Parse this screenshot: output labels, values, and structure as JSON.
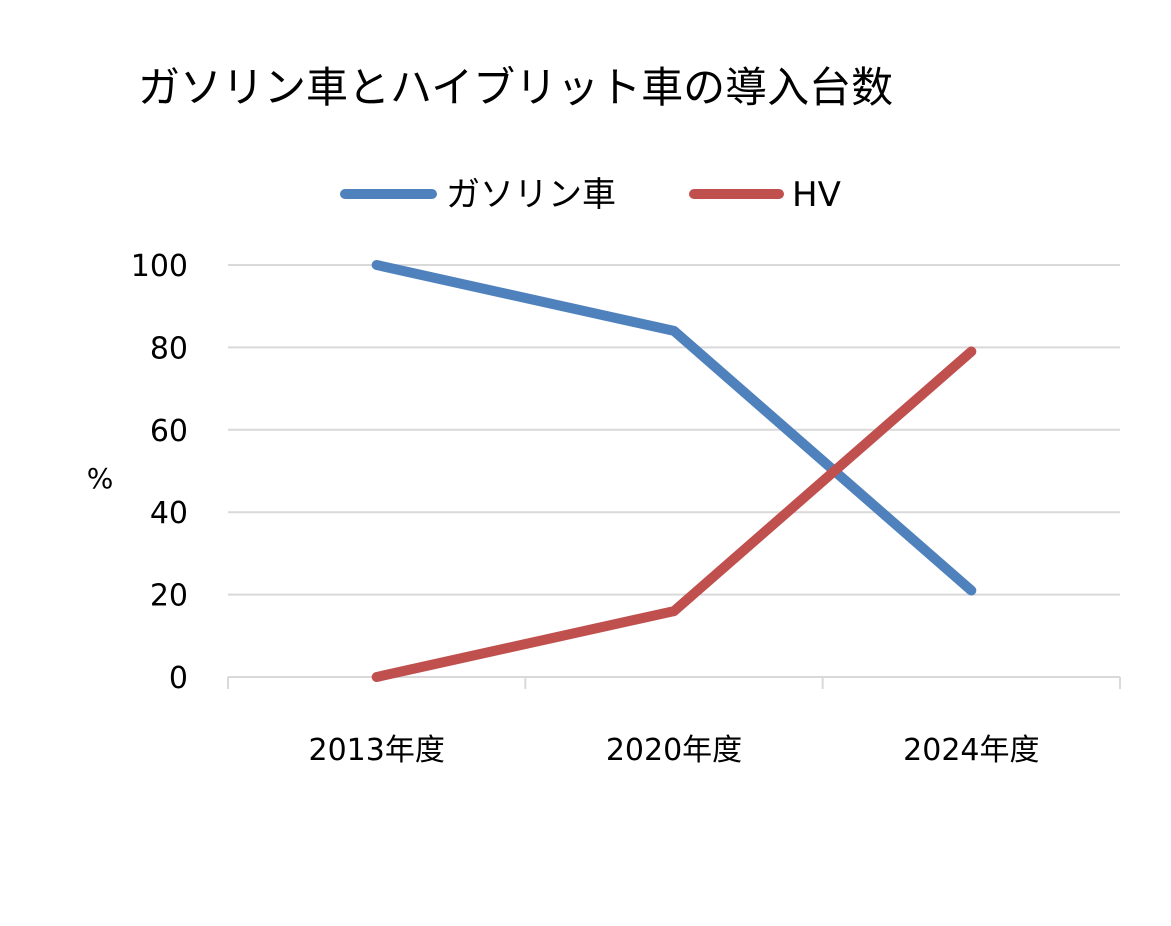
{
  "chart_data": {
    "type": "line",
    "title": "ガソリン車とハイブリット車の導入台数",
    "ylabel": "%",
    "xlabel": "",
    "categories": [
      "2013年度",
      "2020年度",
      "2024年度"
    ],
    "ylim": [
      0,
      100
    ],
    "yticks": [
      0,
      20,
      40,
      60,
      80,
      100
    ],
    "grid": true,
    "legend": "top-center",
    "series": [
      {
        "name": "ガソリン車",
        "color": "#4F81BD",
        "values": [
          100,
          84,
          21
        ]
      },
      {
        "name": "HV",
        "color": "#C0504D",
        "values": [
          0,
          16,
          79
        ]
      }
    ]
  }
}
